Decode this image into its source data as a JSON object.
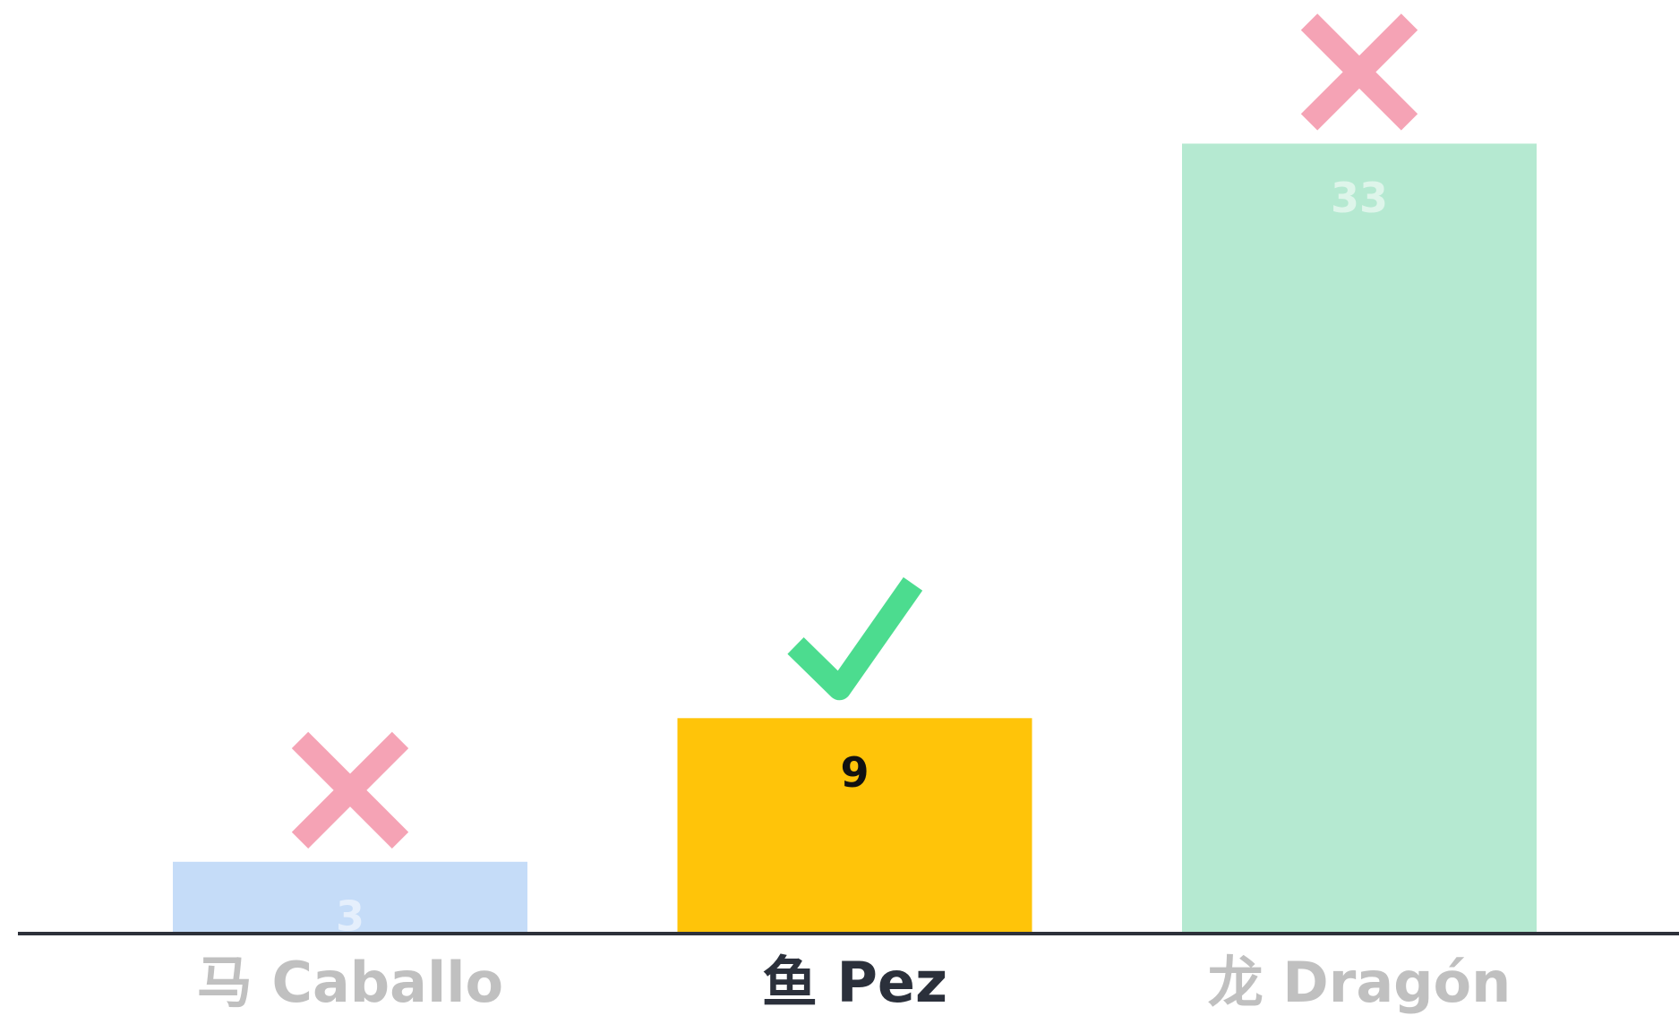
{
  "chart_data": {
    "type": "bar",
    "categories": [
      "马 Caballo",
      "鱼 Pez",
      "龙 Dragón"
    ],
    "values": [
      3,
      9,
      33
    ],
    "colors": [
      "#c5dcf8",
      "#ffc409",
      "#b5e9d1"
    ],
    "correct": [
      false,
      true,
      false
    ],
    "ylim": [
      0,
      39
    ]
  }
}
